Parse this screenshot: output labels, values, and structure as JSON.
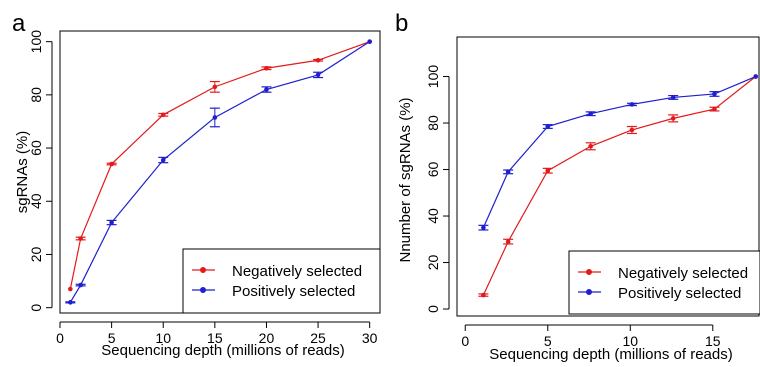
{
  "colors": {
    "negative": "#e31a1c",
    "positive": "#1f1fcf",
    "axis": "#000000"
  },
  "chart_data": [
    {
      "panel_label": "a",
      "type": "line",
      "xlabel": "Sequencing depth (millions of reads)",
      "ylabel": "sgRNAs (%)",
      "xlim": [
        0,
        31
      ],
      "ylim": [
        -2,
        104
      ],
      "x_ticks": [
        0,
        5,
        10,
        15,
        20,
        25,
        30
      ],
      "y_ticks": [
        0,
        20,
        40,
        60,
        80,
        100
      ],
      "legend_position": "bottom-right",
      "series": [
        {
          "name": "Negatively selected",
          "color": "#e31a1c",
          "x": [
            1,
            2,
            5,
            10,
            15,
            20,
            25,
            30
          ],
          "values": [
            7,
            26,
            54,
            72.5,
            83,
            90,
            93,
            100
          ],
          "errors": [
            0,
            0.5,
            0.3,
            0.5,
            2,
            0.5,
            0.3,
            0
          ]
        },
        {
          "name": "Positively selected",
          "color": "#1f1fcf",
          "x": [
            1,
            2,
            5,
            10,
            15,
            20,
            25,
            30
          ],
          "values": [
            2,
            8.5,
            32,
            55.5,
            71.5,
            82,
            87.5,
            100
          ],
          "errors": [
            0.2,
            0.3,
            0.8,
            1,
            3.5,
            1,
            1,
            0
          ]
        }
      ]
    },
    {
      "panel_label": "b",
      "type": "line",
      "xlabel": "Sequencing depth (millions of reads)",
      "ylabel": "Nnumber of sgRNAs (%)",
      "xlim": [
        -0.5,
        17.8
      ],
      "ylim": [
        -3,
        117
      ],
      "x_ticks": [
        0,
        5,
        10,
        15
      ],
      "y_ticks": [
        0,
        20,
        40,
        60,
        80,
        100
      ],
      "legend_position": "bottom-right",
      "series": [
        {
          "name": "Negatively selected",
          "color": "#e31a1c",
          "x": [
            1.1,
            2.6,
            5,
            7.6,
            10.1,
            12.6,
            15.1,
            17.6
          ],
          "values": [
            6,
            29,
            59.5,
            70,
            77,
            82,
            86,
            100
          ],
          "errors": [
            0.5,
            1,
            1,
            1.5,
            1.5,
            1.5,
            0.8,
            0
          ]
        },
        {
          "name": "Positively selected",
          "color": "#1f1fcf",
          "x": [
            1.1,
            2.6,
            5,
            7.6,
            10.1,
            12.6,
            15.1,
            17.6
          ],
          "values": [
            35,
            59,
            78.5,
            84,
            88,
            91,
            92.5,
            100
          ],
          "errors": [
            1,
            0.8,
            0.8,
            0.8,
            0.5,
            0.8,
            1,
            0
          ]
        }
      ]
    }
  ]
}
